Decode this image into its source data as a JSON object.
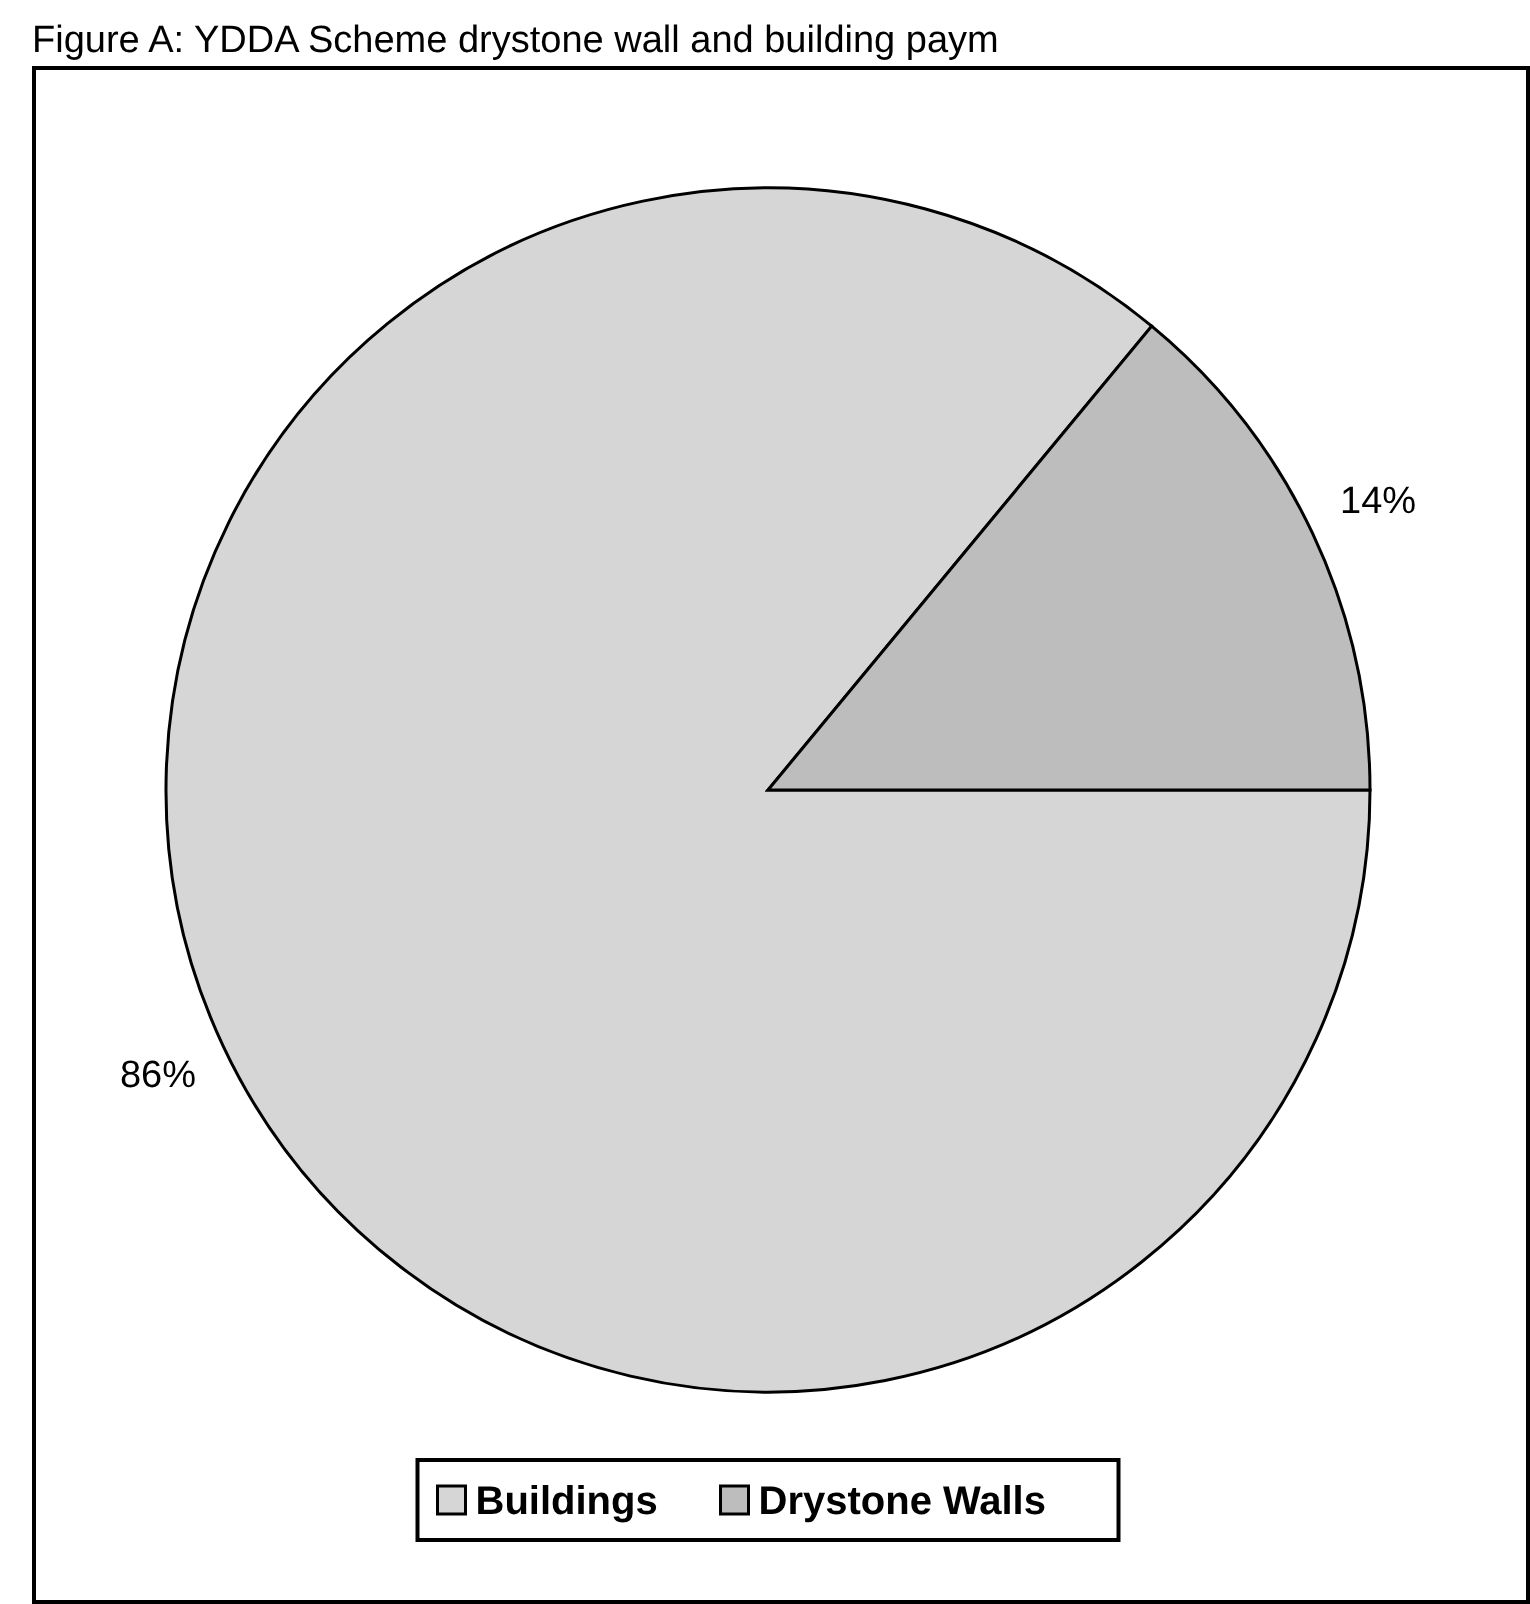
{
  "chart_data": {
    "type": "pie",
    "title": "Figure A: YDDA Scheme drystone wall and building paym",
    "categories": [
      "Buildings",
      "Drystone Walls"
    ],
    "values": [
      86,
      14
    ],
    "colors": [
      "#d6d6d6",
      "#bdbdbd"
    ],
    "value_labels": [
      "86%",
      "14%"
    ],
    "legend": "bottom"
  }
}
